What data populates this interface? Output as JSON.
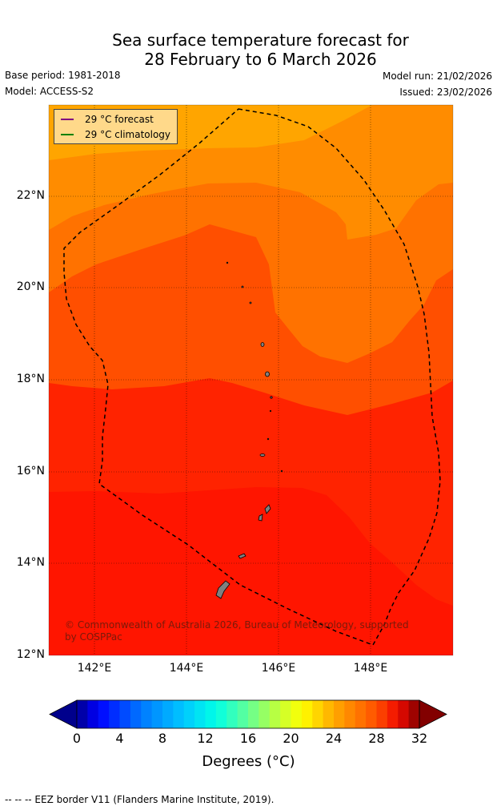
{
  "title_line1": "Sea surface temperature forecast for",
  "title_line2": "28 February to 6 March 2026",
  "base_period": "Base period: 1981-2018",
  "model": "Model: ACCESS-S2",
  "model_run": "Model run: 21/02/2026",
  "issued": "Issued: 23/02/2026",
  "legend": {
    "forecast_label": "29 °C  forecast",
    "forecast_color": "#800080",
    "climatology_label": "29 °C  climatology",
    "climatology_color": "#008000"
  },
  "y_ticks": [
    "22°N",
    "20°N",
    "18°N",
    "16°N",
    "14°N",
    "12°N"
  ],
  "x_ticks": [
    "142°E",
    "144°E",
    "146°E",
    "148°E"
  ],
  "copyright": "© Commonwealth of Australia 2026, Bureau of Meteorology, supported by COSPPac",
  "colorbar": {
    "ticks": [
      "0",
      "4",
      "8",
      "12",
      "16",
      "20",
      "24",
      "28",
      "32"
    ],
    "label": "Degrees (°C)",
    "min": 0,
    "max": 32,
    "step": 1
  },
  "footer": "--  --  -- EEZ border V11 (Flanders Marine Institute, 2019).",
  "chart_data": {
    "type": "map",
    "variable": "Sea surface temperature",
    "units": "°C",
    "lat_range": [
      12,
      24
    ],
    "lon_range": [
      141,
      149.8
    ],
    "contour_bands_degC": [
      {
        "range": "26-27",
        "color": "#ffa500",
        "region": "north edge"
      },
      {
        "range": "27-28",
        "color": "#ff8c00",
        "region": "northern"
      },
      {
        "range": "28-29",
        "color": "#ff6e00",
        "region": "central-north and east"
      },
      {
        "range": "29-30",
        "color": "#ff4800",
        "region": "central"
      },
      {
        "range": "30-31",
        "color": "#ff1e00",
        "region": "south"
      }
    ]
  }
}
